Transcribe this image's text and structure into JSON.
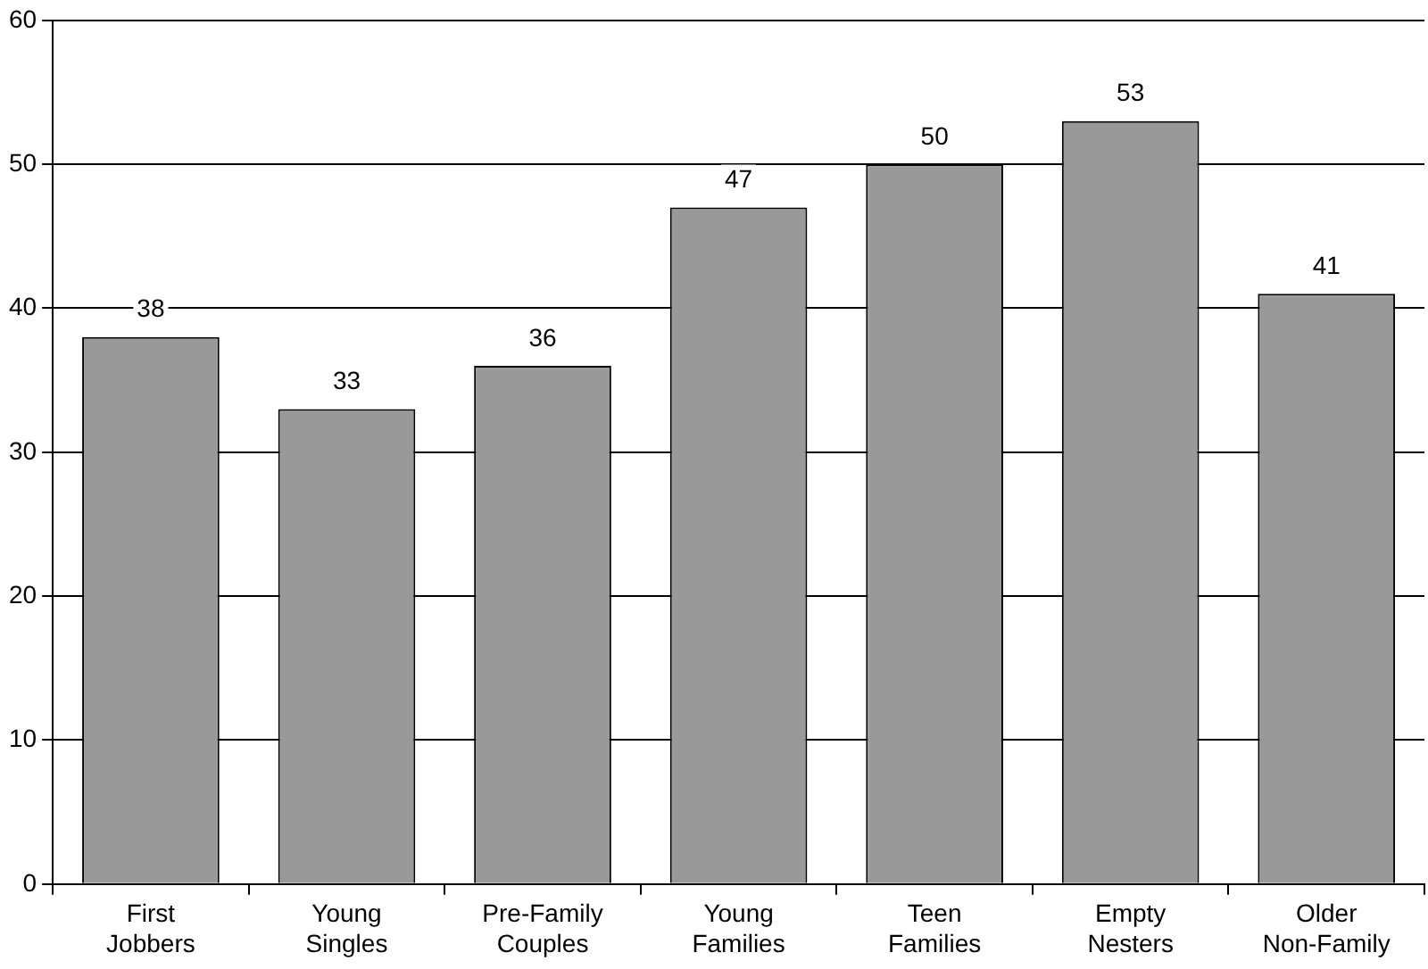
{
  "chart_data": {
    "type": "bar",
    "categories": [
      "First Jobbers",
      "Young Singles",
      "Pre-Family Couples",
      "Young Families",
      "Teen Families",
      "Empty Nesters",
      "Older Non-Family"
    ],
    "values": [
      38,
      33,
      36,
      47,
      50,
      53,
      41
    ],
    "color": "#999999",
    "ylim": [
      0,
      60
    ],
    "yticks": [
      0,
      10,
      20,
      30,
      40,
      50,
      60
    ],
    "grid": "y",
    "data_labels": true,
    "legend": false
  }
}
